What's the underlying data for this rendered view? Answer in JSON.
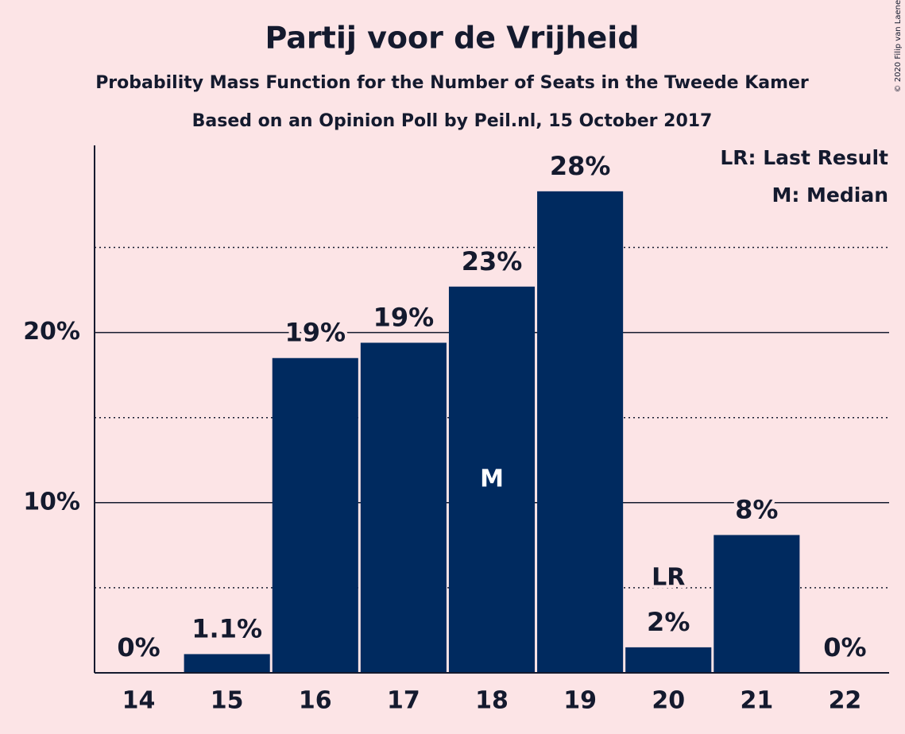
{
  "chart_data": {
    "type": "bar",
    "title": "Partij voor de Vrijheid",
    "subtitles": [
      "Probability Mass Function for the Number of Seats in the Tweede Kamer",
      "Based on an Opinion Poll by Peil.nl, 15 October 2017"
    ],
    "credit": "© 2020 Filip van Laenen",
    "categories": [
      "14",
      "15",
      "16",
      "17",
      "18",
      "19",
      "20",
      "21",
      "22"
    ],
    "values": [
      0,
      1.1,
      18.5,
      19.4,
      22.7,
      28.3,
      1.5,
      8.1,
      0
    ],
    "value_labels": [
      "0%",
      "1.1%",
      "19%",
      "19%",
      "23%",
      "28%",
      "2%",
      "8%",
      "0%"
    ],
    "color": "#002a5f",
    "ylim": [
      0,
      31
    ],
    "yticks": [
      {
        "value": 10,
        "label": "10%"
      },
      {
        "value": 20,
        "label": "20%"
      }
    ],
    "minor_yticks": [
      5,
      15,
      25
    ],
    "grid": true,
    "annotations": [
      {
        "label": "LR",
        "category": "20",
        "position": "above"
      },
      {
        "label": "M",
        "category": "18",
        "position": "inside"
      }
    ],
    "legend": [
      "LR: Last Result",
      "M: Median"
    ],
    "legend_position": "top-right"
  }
}
